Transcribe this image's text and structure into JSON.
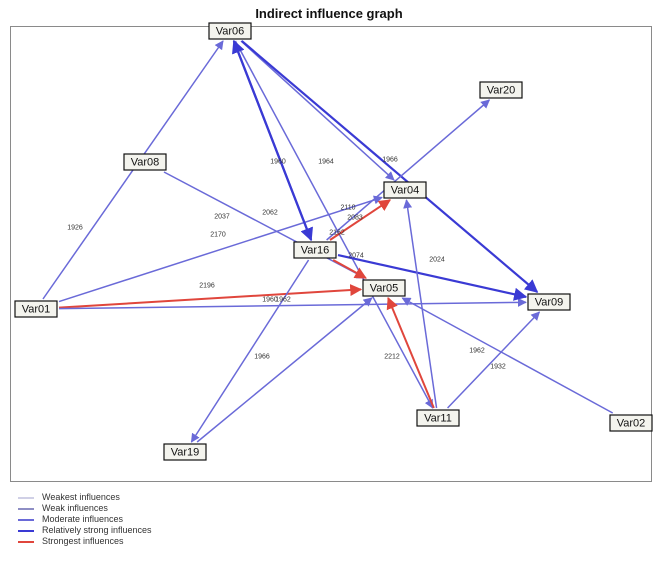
{
  "title": "Indirect influence graph",
  "colors": {
    "weakest": "#d0d0e6",
    "weak": "#8e8ec4",
    "moderate": "#6a6ad8",
    "relatively_strong": "#3a3ad4",
    "strongest": "#e0463c"
  },
  "nodes": [
    {
      "id": "Var01",
      "label": "Var01"
    },
    {
      "id": "Var02",
      "label": "Var02"
    },
    {
      "id": "Var04",
      "label": "Var04"
    },
    {
      "id": "Var05",
      "label": "Var05"
    },
    {
      "id": "Var06",
      "label": "Var06"
    },
    {
      "id": "Var08",
      "label": "Var08"
    },
    {
      "id": "Var09",
      "label": "Var09"
    },
    {
      "id": "Var11",
      "label": "Var11"
    },
    {
      "id": "Var16",
      "label": "Var16"
    },
    {
      "id": "Var19",
      "label": "Var19"
    },
    {
      "id": "Var20",
      "label": "Var20"
    }
  ],
  "edges": [
    {
      "from": "Var01",
      "to": "Var06",
      "label": "1926",
      "strength": "moderate"
    },
    {
      "from": "Var01",
      "to": "Var04",
      "label": "",
      "strength": "moderate"
    },
    {
      "from": "Var01",
      "to": "Var05",
      "label": "2196",
      "strength": "strongest"
    },
    {
      "from": "Var01",
      "to": "Var09",
      "label": "",
      "strength": "moderate"
    },
    {
      "from": "Var06",
      "to": "Var04",
      "label": "",
      "strength": "moderate"
    },
    {
      "from": "Var06",
      "to": "Var09",
      "label": "2062",
      "strength": "relatively_strong"
    },
    {
      "from": "Var06",
      "to": "Var16",
      "label": "2037",
      "strength": "relatively_strong"
    },
    {
      "from": "Var06",
      "to": "Var11",
      "label": "",
      "strength": "moderate"
    },
    {
      "from": "Var08",
      "to": "Var05",
      "label": "1964",
      "strength": "moderate"
    },
    {
      "from": "Var16",
      "to": "Var20",
      "label": "1966",
      "strength": "moderate"
    },
    {
      "from": "Var16",
      "to": "Var04",
      "label": "2110",
      "strength": "strongest"
    },
    {
      "from": "Var16",
      "to": "Var05",
      "label": "2074",
      "strength": "strongest"
    },
    {
      "from": "Var16",
      "to": "Var09",
      "label": "2024",
      "strength": "relatively_strong"
    },
    {
      "from": "Var16",
      "to": "Var06",
      "label": "",
      "strength": "relatively_strong"
    },
    {
      "from": "Var16",
      "to": "Var19",
      "label": "1966",
      "strength": "moderate"
    },
    {
      "from": "Var11",
      "to": "Var05",
      "label": "2212",
      "strength": "strongest"
    },
    {
      "from": "Var11",
      "to": "Var04",
      "label": "",
      "strength": "moderate"
    },
    {
      "from": "Var11",
      "to": "Var09",
      "label": "1932",
      "strength": "moderate"
    },
    {
      "from": "Var02",
      "to": "Var05",
      "label": "1962",
      "strength": "moderate"
    },
    {
      "from": "Var19",
      "to": "Var05",
      "label": "1962",
      "strength": "moderate"
    }
  ],
  "extra_edge_labels": [
    {
      "text": "1960",
      "near": "Var08-Var05"
    },
    {
      "text": "2170",
      "near": "Var06-Var16"
    },
    {
      "text": "2083",
      "near": "Var16-Var04"
    },
    {
      "text": "2162",
      "near": "Var16-Var04"
    },
    {
      "text": "1960",
      "near": "Var01-Var09"
    }
  ],
  "legend": [
    {
      "key": "weakest",
      "label": "Weakest influences"
    },
    {
      "key": "weak",
      "label": "Weak influences"
    },
    {
      "key": "moderate",
      "label": "Moderate influences"
    },
    {
      "key": "relatively_strong",
      "label": "Relatively strong influences"
    },
    {
      "key": "strongest",
      "label": "Strongest influences"
    }
  ]
}
